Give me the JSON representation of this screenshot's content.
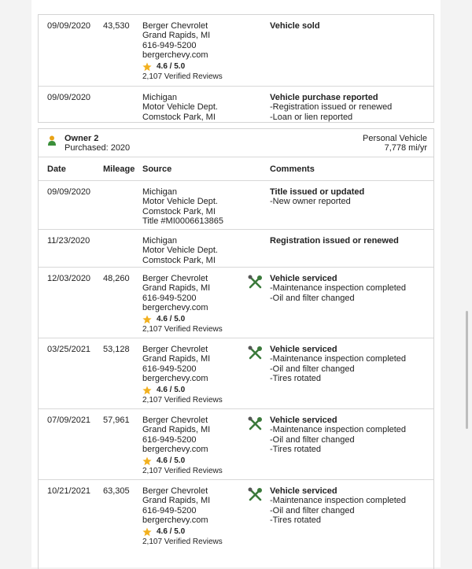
{
  "owner1_rows": [
    {
      "date": "09/09/2020",
      "mileage": "43,530",
      "source": [
        "Berger Chevrolet",
        "Grand Rapids, MI",
        "616-949-5200",
        "bergerchevy.com"
      ],
      "rating": "4.6 / 5.0",
      "reviews": "2,107 Verified Reviews",
      "comment_title": "Vehicle sold",
      "comment_items": []
    },
    {
      "date": "09/09/2020",
      "source": [
        "Michigan",
        "Motor Vehicle Dept.",
        "Comstock Park, MI"
      ],
      "comment_title": "Vehicle purchase reported",
      "comment_items": [
        "-Registration issued or renewed",
        "-Loan or lien reported"
      ]
    }
  ],
  "owner2": {
    "name": "Owner 2",
    "purchased": "Purchased: 2020",
    "vehicle_type": "Personal Vehicle",
    "usage": "7,778 mi/yr",
    "headers": [
      "Date",
      "Mileage",
      "Source",
      "Comments"
    ],
    "rows": [
      {
        "date": "09/09/2020",
        "source": [
          "Michigan",
          "Motor Vehicle Dept.",
          "Comstock Park, MI",
          "Title #MI0006613865"
        ],
        "comment_title": "Title issued or updated",
        "comment_items": [
          "-New owner reported"
        ]
      },
      {
        "date": "11/23/2020",
        "source": [
          "Michigan",
          "Motor Vehicle Dept.",
          "Comstock Park, MI"
        ],
        "comment_title": "Registration issued or renewed",
        "comment_items": []
      },
      {
        "date": "12/03/2020",
        "mileage": "48,260",
        "source": [
          "Berger Chevrolet",
          "Grand Rapids, MI",
          "616-949-5200",
          "bergerchevy.com"
        ],
        "rating": "4.6 / 5.0",
        "reviews": "2,107 Verified Reviews",
        "service_icon": true,
        "comment_title": "Vehicle serviced",
        "comment_items": [
          "-Maintenance inspection completed",
          "-Oil and filter changed"
        ]
      },
      {
        "date": "03/25/2021",
        "mileage": "53,128",
        "source": [
          "Berger Chevrolet",
          "Grand Rapids, MI",
          "616-949-5200",
          "bergerchevy.com"
        ],
        "rating": "4.6 / 5.0",
        "reviews": "2,107 Verified Reviews",
        "service_icon": true,
        "comment_title": "Vehicle serviced",
        "comment_items": [
          "-Maintenance inspection completed",
          "-Oil and filter changed",
          "-Tires rotated"
        ]
      },
      {
        "date": "07/09/2021",
        "mileage": "57,961",
        "source": [
          "Berger Chevrolet",
          "Grand Rapids, MI",
          "616-949-5200",
          "bergerchevy.com"
        ],
        "rating": "4.6 / 5.0",
        "reviews": "2,107 Verified Reviews",
        "service_icon": true,
        "comment_title": "Vehicle serviced",
        "comment_items": [
          "-Maintenance inspection completed",
          "-Oil and filter changed",
          "-Tires rotated"
        ]
      },
      {
        "date": "10/21/2021",
        "mileage": "63,305",
        "source": [
          "Berger Chevrolet",
          "Grand Rapids, MI",
          "616-949-5200",
          "bergerchevy.com"
        ],
        "rating": "4.6 / 5.0",
        "reviews": "2,107 Verified Reviews",
        "service_icon": true,
        "comment_title": "Vehicle serviced",
        "comment_items": [
          "-Maintenance inspection completed",
          "-Oil and filter changed",
          "-Tires rotated"
        ]
      }
    ]
  }
}
